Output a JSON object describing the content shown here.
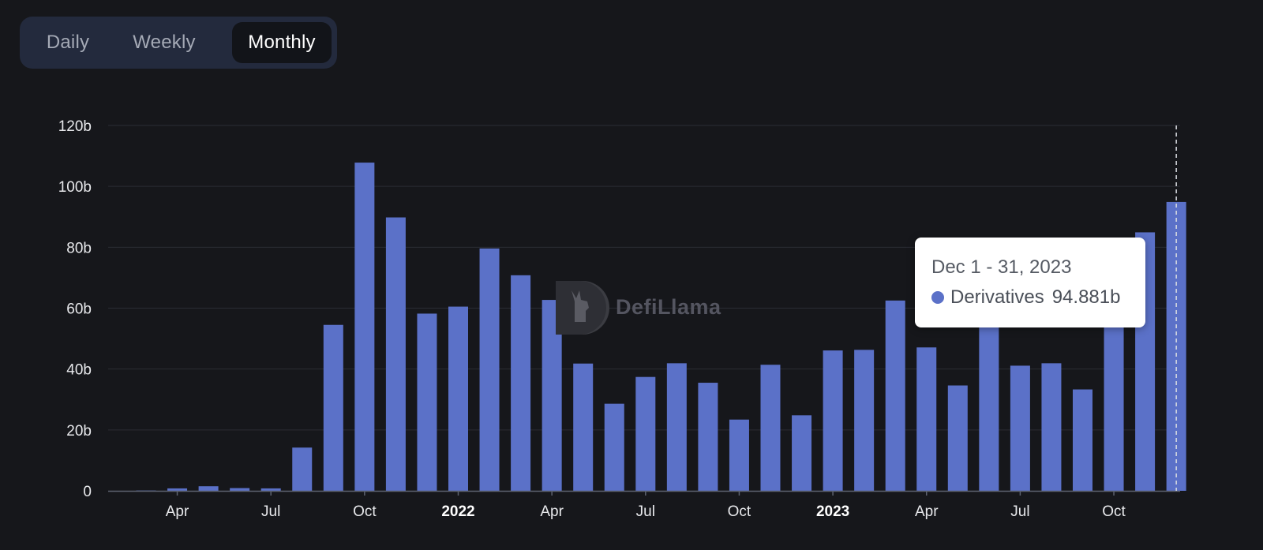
{
  "controls": {
    "period_options": [
      "Daily",
      "Weekly",
      "Monthly"
    ],
    "selected": "Monthly"
  },
  "watermark": {
    "text": "DefiLlama"
  },
  "tooltip": {
    "title": "Dec 1 - 31, 2023",
    "series_name": "Derivatives",
    "value": "94.881b"
  },
  "colors": {
    "background": "#16171b",
    "bar": "#5b71c8",
    "grid": "#2b2d34",
    "toggle_bg": "#232a3d",
    "toggle_active": "#121419"
  },
  "chart_data": {
    "type": "bar",
    "categories": [
      "2021-03",
      "2021-04",
      "2021-05",
      "2021-06",
      "2021-07",
      "2021-08",
      "2021-09",
      "2021-10",
      "2021-11",
      "2021-12",
      "2022-01",
      "2022-02",
      "2022-03",
      "2022-04",
      "2022-05",
      "2022-06",
      "2022-07",
      "2022-08",
      "2022-09",
      "2022-10",
      "2022-11",
      "2022-12",
      "2023-01",
      "2023-02",
      "2023-03",
      "2023-04",
      "2023-05",
      "2023-06",
      "2023-07",
      "2023-08",
      "2023-09",
      "2023-10",
      "2023-11",
      "2023-12"
    ],
    "series": [
      {
        "name": "Derivatives",
        "values": [
          0.1,
          0.8,
          1.5,
          0.9,
          0.8,
          14.2,
          54.5,
          107.8,
          89.8,
          58.2,
          60.5,
          79.6,
          70.8,
          62.7,
          41.8,
          28.6,
          37.4,
          41.9,
          35.5,
          23.4,
          41.4,
          24.8,
          46.1,
          46.3,
          62.5,
          47.1,
          34.6,
          58.0,
          41.1,
          41.9,
          33.3,
          57.0,
          84.9,
          94.881
        ]
      }
    ],
    "xaxis": {
      "tick_labels": [
        "Apr",
        "Jul",
        "Oct",
        "2022",
        "Apr",
        "Jul",
        "Oct",
        "2023",
        "Apr",
        "Jul",
        "Oct"
      ],
      "tick_categories": [
        "2021-04",
        "2021-07",
        "2021-10",
        "2022-01",
        "2022-04",
        "2022-07",
        "2022-10",
        "2023-01",
        "2023-04",
        "2023-07",
        "2023-10"
      ],
      "bold_labels": [
        "2022",
        "2023"
      ]
    },
    "yaxis": {
      "tick_values": [
        0,
        20,
        40,
        60,
        80,
        100,
        120
      ],
      "tick_labels": [
        "0",
        "20b",
        "40b",
        "60b",
        "80b",
        "100b",
        "120b"
      ]
    },
    "ylim": [
      0,
      120
    ],
    "grid": true,
    "highlighted_category": "2023-12",
    "title": "",
    "xlabel": "",
    "ylabel": ""
  }
}
